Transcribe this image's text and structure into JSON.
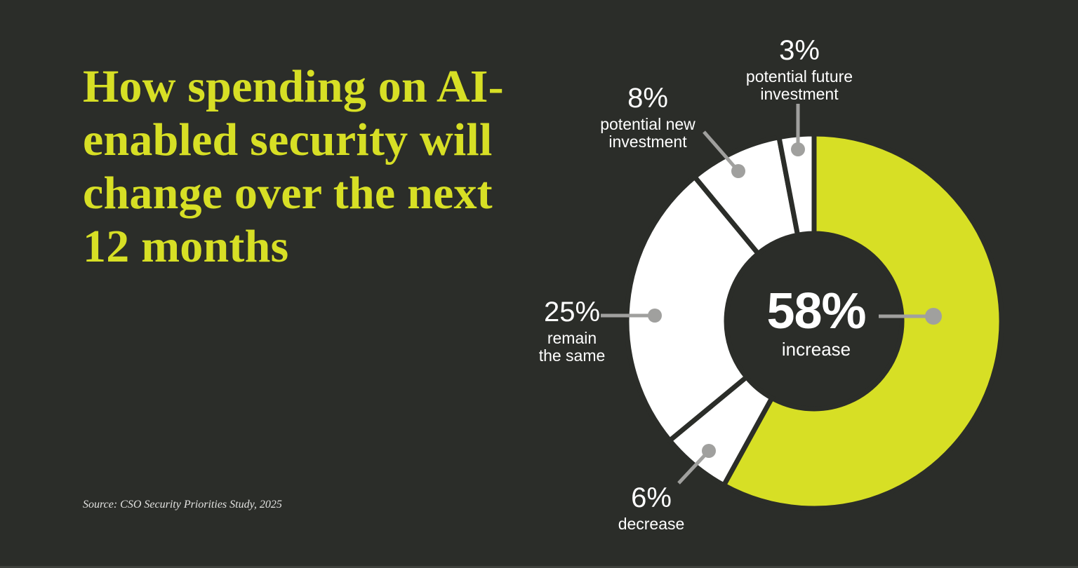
{
  "background": "#2b2d29",
  "accent_yellow": "#d7df25",
  "title": {
    "text": "How spending on AI-enabled security will change over the next 12 months",
    "lines": [
      "How spending on AI-",
      "enabled security will",
      "change over the next",
      "12 months"
    ]
  },
  "source": "Source: CSO Security Priorities Study, 2025",
  "chart_data": {
    "type": "pie",
    "subtype": "donut",
    "title": "How spending on AI-enabled security will change over the next 12 months",
    "start_angle_deg": 0,
    "direction": "clockwise",
    "segments": [
      {
        "label": "increase",
        "value_pct": 58,
        "color": "#d7df25"
      },
      {
        "label": "decrease",
        "value_pct": 6,
        "color": "#ffffff"
      },
      {
        "label": "remain the same",
        "value_pct": 25,
        "color": "#ffffff"
      },
      {
        "label": "potential new investment",
        "value_pct": 8,
        "color": "#ffffff"
      },
      {
        "label": "potential future investment",
        "value_pct": 3,
        "color": "#ffffff"
      }
    ],
    "center_label": {
      "value": "58%",
      "caption": "increase"
    },
    "callouts": {
      "increase": {
        "pct": "58%",
        "caption": "increase"
      },
      "decrease": {
        "pct": "6%",
        "caption": "decrease"
      },
      "remain": {
        "pct": "25%",
        "caption": "remain\nthe same"
      },
      "new_investment": {
        "pct": "8%",
        "caption": "potential new\ninvestment"
      },
      "future_investment": {
        "pct": "3%",
        "caption": "potential future\ninvestment"
      }
    },
    "leader_color": "#a0a09e",
    "legend": "none",
    "source": "CSO Security Priorities Study, 2025"
  }
}
